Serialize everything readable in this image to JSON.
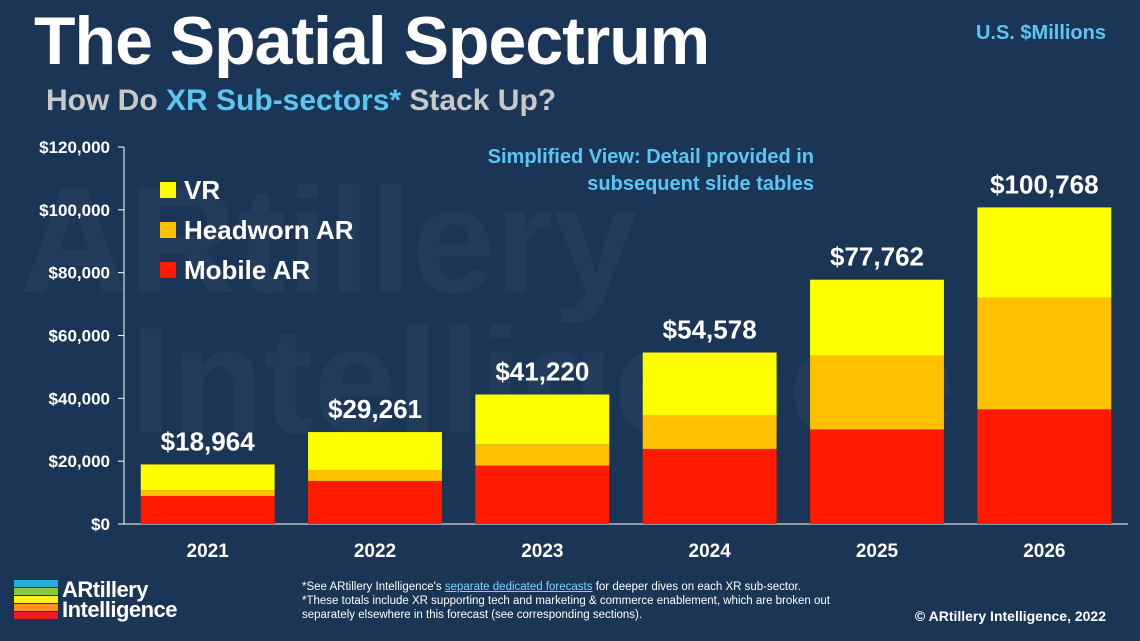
{
  "header": {
    "title": "The Spatial Spectrum",
    "subtitle_pre": "How Do ",
    "subtitle_highlight": "XR Sub-sectors*",
    "subtitle_post": " Stack Up?",
    "units": "U.S. $Millions"
  },
  "note": {
    "line1": "Simplified View: Detail provided in",
    "line2": "subsequent slide tables"
  },
  "watermark": {
    "line1": "ARtillery",
    "line2": "Intelligence"
  },
  "chart_data": {
    "type": "bar",
    "stacked": true,
    "categories": [
      "2021",
      "2022",
      "2023",
      "2024",
      "2025",
      "2026"
    ],
    "series": [
      {
        "name": "Mobile AR",
        "color": "#ff1a00",
        "values": [
          8900,
          13700,
          18600,
          23900,
          30100,
          36500
        ]
      },
      {
        "name": "Headworn AR",
        "color": "#ffc000",
        "values": [
          1900,
          3500,
          6800,
          10800,
          23500,
          35500
        ]
      },
      {
        "name": "VR",
        "color": "#ffff00",
        "values": [
          8164,
          12061,
          15820,
          19878,
          24162,
          28768
        ]
      }
    ],
    "totals": [
      18964,
      29261,
      41220,
      54578,
      77762,
      100768
    ],
    "total_labels": [
      "$18,964",
      "$29,261",
      "$41,220",
      "$54,578",
      "$77,762",
      "$100,768"
    ],
    "yticks": [
      0,
      20000,
      40000,
      60000,
      80000,
      100000,
      120000
    ],
    "ytick_labels": [
      "$0",
      "$20,000",
      "$40,000",
      "$60,000",
      "$80,000",
      "$100,000",
      "$120,000"
    ],
    "ylim": [
      0,
      120000
    ],
    "legend_position": "top-left",
    "grid": false
  },
  "legend": {
    "items": [
      {
        "label": "VR",
        "color": "#ffff00"
      },
      {
        "label": "Headworn AR",
        "color": "#ffc000"
      },
      {
        "label": "Mobile AR",
        "color": "#ff1a00"
      }
    ]
  },
  "logo": {
    "line1": "ARtillery",
    "line2": "Intelligence"
  },
  "footnote": {
    "l1_pre": "*See ARtillery Intelligence's ",
    "l1_link": "separate dedicated forecasts",
    "l1_post": " for deeper dives on each XR sub-sector.",
    "l2": "*These totals include XR supporting tech and marketing & commerce enablement, which are broken out separately elsewhere in this forecast (see corresponding sections)."
  },
  "copyright": "© ARtillery Intelligence, 2022"
}
